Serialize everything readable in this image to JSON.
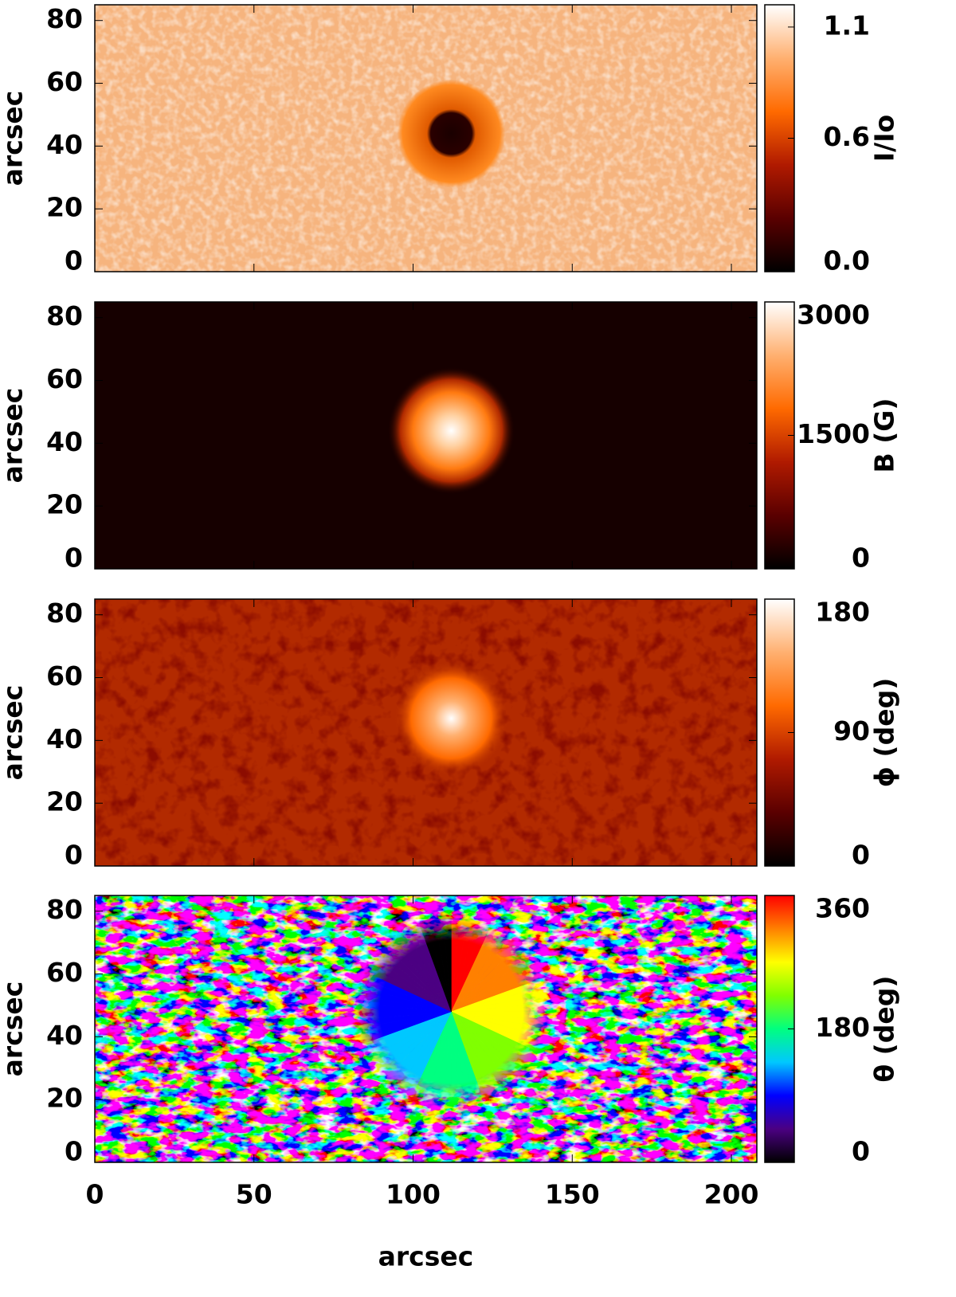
{
  "chart_data": [
    {
      "type": "heatmap",
      "ylabel": "arcsec",
      "xlim": [
        0,
        208
      ],
      "ylim": [
        0,
        85
      ],
      "xticks": [
        0,
        50,
        100,
        150,
        200
      ],
      "yticks": [
        0,
        20,
        40,
        60,
        80
      ],
      "colorbar": {
        "label": "I/Io",
        "lim": [
          0,
          1.2
        ],
        "ticks": [
          {
            "value": 0,
            "label": "0.0"
          },
          0.6,
          1.1
        ],
        "colormap": [
          "#000000",
          "#5a0000",
          "#b01a00",
          "#ff6a00",
          "#ffb070",
          "#ffffff"
        ]
      }
    },
    {
      "type": "heatmap",
      "ylabel": "arcsec",
      "xlim": [
        0,
        208
      ],
      "ylim": [
        0,
        85
      ],
      "xticks": [
        0,
        50,
        100,
        150,
        200
      ],
      "yticks": [
        0,
        20,
        40,
        60,
        80
      ],
      "colorbar": {
        "label": "B (G)",
        "lim": [
          0,
          3000
        ],
        "ticks": [
          0,
          1500,
          3000
        ],
        "colormap": [
          "#000000",
          "#5a0000",
          "#b01a00",
          "#ff6a00",
          "#ffb070",
          "#ffffff"
        ]
      }
    },
    {
      "type": "heatmap",
      "ylabel": "arcsec",
      "xlim": [
        0,
        208
      ],
      "ylim": [
        0,
        85
      ],
      "xticks": [
        0,
        50,
        100,
        150,
        200
      ],
      "yticks": [
        0,
        20,
        40,
        60,
        80
      ],
      "colorbar": {
        "label": "ϕ (deg)",
        "lim": [
          0,
          180
        ],
        "ticks": [
          0,
          90,
          180
        ],
        "colormap": [
          "#000000",
          "#5a0000",
          "#b01a00",
          "#ff6a00",
          "#ffb070",
          "#ffffff"
        ]
      }
    },
    {
      "type": "heatmap",
      "ylabel": "arcsec",
      "xlabel": "arcsec",
      "xlim": [
        0,
        208
      ],
      "ylim": [
        0,
        85
      ],
      "xticks": [
        0,
        50,
        100,
        150,
        200
      ],
      "yticks": [
        0,
        20,
        40,
        60,
        80
      ],
      "colorbar": {
        "label": "θ (deg)",
        "lim": [
          0,
          360
        ],
        "ticks": [
          0,
          180,
          360
        ],
        "colormap": [
          "#000000",
          "#4b0082",
          "#0000ff",
          "#00c8ff",
          "#00ff80",
          "#80ff00",
          "#ffff00",
          "#ff8000",
          "#ff0000"
        ]
      }
    }
  ]
}
